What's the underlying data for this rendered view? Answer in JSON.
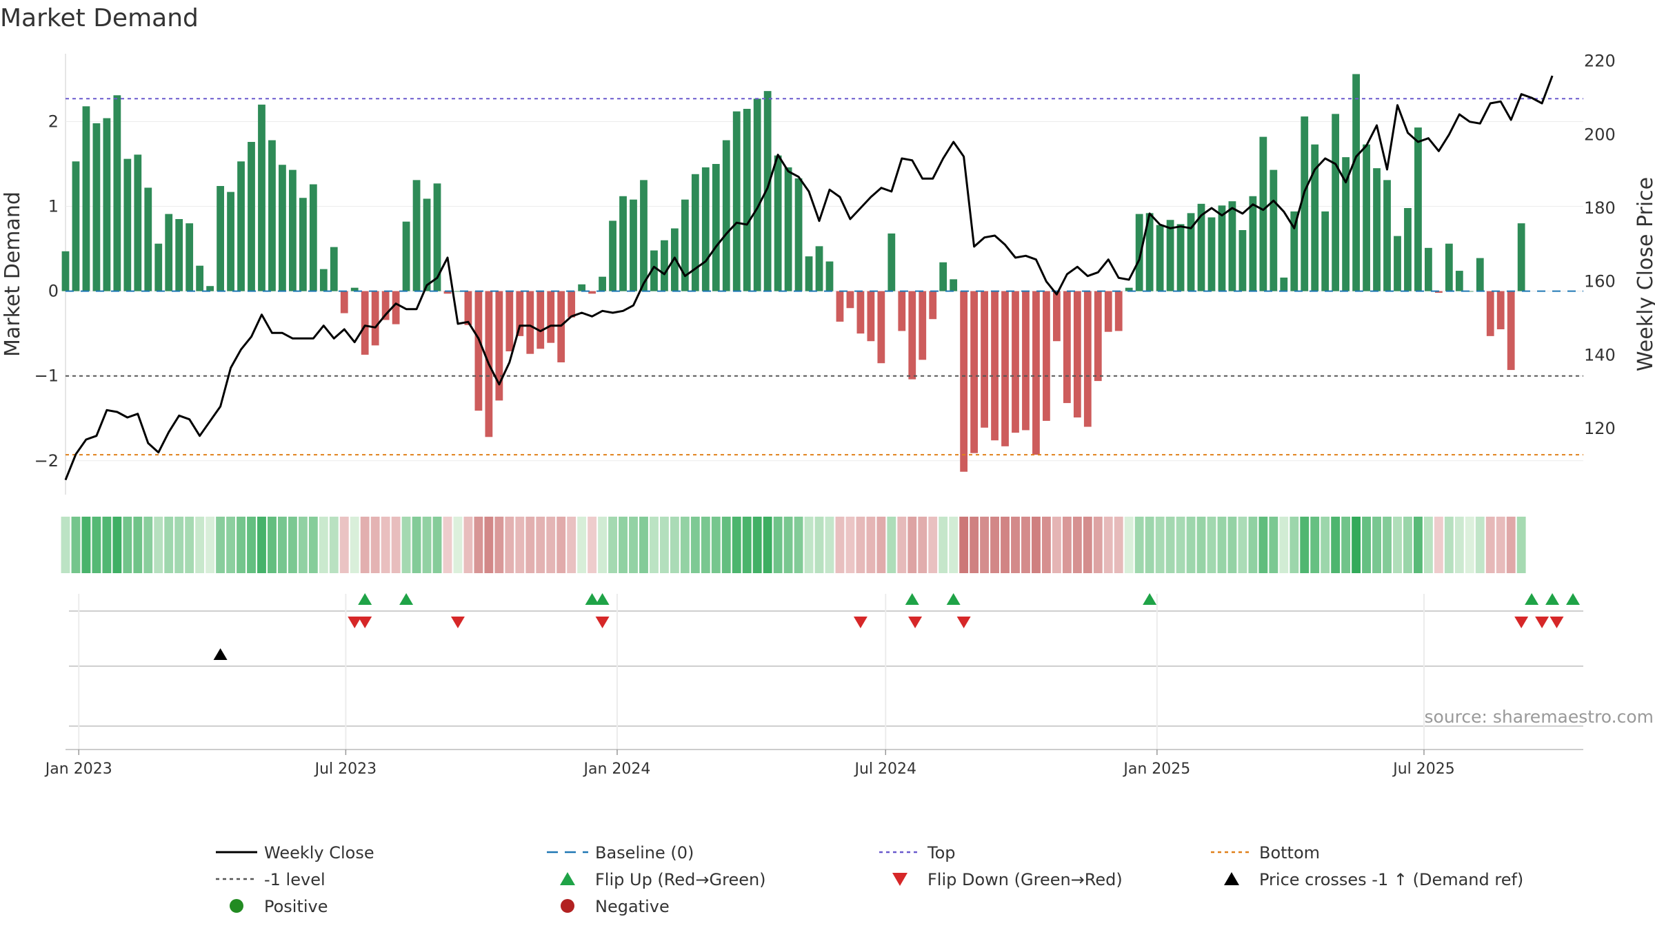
{
  "title": "Market Demand",
  "source": "source: sharemaestro.com",
  "colors": {
    "positive_bar": "#2e8b57",
    "negative_bar": "#cd5c5c",
    "close_line": "#000000",
    "baseline": "#1f77b4",
    "top": "#6a5acd",
    "bottom": "#e0801a",
    "minus_one": "#555555",
    "flip_up": "#1fa347",
    "flip_down": "#d62728",
    "cross_marker": "#000000",
    "positive_dot": "#228b22",
    "negative_dot": "#b22222"
  },
  "legend": [
    {
      "key": "close",
      "label": "Weekly Close",
      "marker": "line-solid",
      "color": "#000000"
    },
    {
      "key": "baseline",
      "label": "Baseline (0)",
      "marker": "line-dash",
      "color": "#1f77b4"
    },
    {
      "key": "top",
      "label": "Top",
      "marker": "line-dot",
      "color": "#6a5acd"
    },
    {
      "key": "bottom",
      "label": "Bottom",
      "marker": "line-dot",
      "color": "#e0801a"
    },
    {
      "key": "minus_one",
      "label": "-1 level",
      "marker": "line-dot",
      "color": "#555555"
    },
    {
      "key": "flip_up",
      "label": "Flip Up (Red→Green)",
      "marker": "triangle-up",
      "color": "#1fa347"
    },
    {
      "key": "flip_down",
      "label": "Flip Down (Green→Red)",
      "marker": "triangle-down",
      "color": "#d62728"
    },
    {
      "key": "cross",
      "label": "Price crosses -1 ↑ (Demand ref)",
      "marker": "triangle-up",
      "color": "#000000"
    },
    {
      "key": "positive",
      "label": "Positive",
      "marker": "circle",
      "color": "#228b22"
    },
    {
      "key": "negative",
      "label": "Negative",
      "marker": "circle",
      "color": "#b22222"
    }
  ],
  "chart_data": {
    "type": "bar",
    "title": "Market Demand",
    "ylabel": "Market Demand",
    "y2label": "Weekly Close Price",
    "ylim": [
      -2.4,
      2.8
    ],
    "y2lim": [
      102,
      222
    ],
    "yticks": [
      -2,
      -1,
      0,
      1,
      2
    ],
    "ytick_labels": [
      "−2",
      "−1",
      "0",
      "1",
      "2"
    ],
    "y2ticks": [
      120,
      140,
      160,
      180,
      200,
      220
    ],
    "x_start": "2022-12-23",
    "x_end": "2025-10-17",
    "date_ticks": [
      {
        "date": "2023-01-01",
        "label": "Jan 2023"
      },
      {
        "date": "2023-07-01",
        "label": "Jul 2023"
      },
      {
        "date": "2024-01-01",
        "label": "Jan 2024"
      },
      {
        "date": "2024-07-01",
        "label": "Jul 2024"
      },
      {
        "date": "2025-01-01",
        "label": "Jan 2025"
      },
      {
        "date": "2025-07-01",
        "label": "Jul 2025"
      }
    ],
    "reference_lines": {
      "top": 2.27,
      "bottom": -1.93,
      "minus_one": -1.0,
      "baseline": 0
    },
    "weeks_start": "2022-12-23",
    "demand": [
      0.47,
      1.53,
      2.18,
      1.98,
      2.04,
      2.31,
      1.56,
      1.61,
      1.22,
      0.56,
      0.91,
      0.85,
      0.8,
      0.3,
      0.06,
      1.24,
      1.17,
      1.53,
      1.76,
      2.2,
      1.78,
      1.49,
      1.43,
      1.1,
      1.26,
      0.26,
      0.52,
      -0.26,
      0.04,
      -0.75,
      -0.64,
      -0.34,
      -0.39,
      0.82,
      1.31,
      1.09,
      1.27,
      -0.03,
      0.0,
      -0.4,
      -1.41,
      -1.72,
      -1.29,
      -0.71,
      -0.53,
      -0.74,
      -0.68,
      -0.61,
      -0.84,
      -0.31,
      0.08,
      -0.03,
      0.17,
      0.83,
      1.12,
      1.08,
      1.31,
      0.48,
      0.6,
      0.74,
      1.08,
      1.38,
      1.46,
      1.5,
      1.78,
      2.12,
      2.15,
      2.27,
      2.36,
      1.6,
      1.46,
      1.33,
      0.41,
      0.53,
      0.35,
      -0.36,
      -0.2,
      -0.5,
      -0.59,
      -0.85,
      0.68,
      -0.47,
      -1.04,
      -0.81,
      -0.33,
      0.34,
      0.14,
      -2.13,
      -1.91,
      -1.61,
      -1.76,
      -1.83,
      -1.67,
      -1.64,
      -1.93,
      -1.53,
      -0.59,
      -1.32,
      -1.49,
      -1.6,
      -1.06,
      -0.48,
      -0.47,
      0.04,
      0.91,
      0.92,
      0.78,
      0.84,
      0.79,
      0.92,
      1.03,
      0.87,
      1.01,
      1.06,
      0.72,
      1.12,
      1.82,
      1.43,
      0.16,
      0.94,
      2.06,
      1.73,
      0.94,
      2.09,
      1.58,
      2.56,
      1.73,
      1.45,
      1.31,
      0.65,
      0.98,
      1.93,
      0.51,
      -0.02,
      0.56,
      0.24,
      0.0,
      0.39,
      -0.53,
      -0.45,
      -0.93,
      0.8
    ],
    "weekly_close": [
      106,
      113,
      117,
      118,
      125,
      124.5,
      123,
      124,
      116,
      113.5,
      119,
      123.5,
      122.5,
      118,
      122,
      126,
      136.5,
      141.5,
      145,
      151,
      146,
      146,
      144.5,
      144.5,
      144.5,
      148,
      144.5,
      147,
      143.5,
      148,
      147.5,
      151,
      154,
      152.5,
      152.5,
      159,
      161,
      166.5,
      148.5,
      149,
      144.5,
      137.5,
      132,
      138,
      148,
      148,
      146.5,
      148,
      148,
      150.5,
      151.5,
      150.5,
      152,
      151.5,
      152,
      153.5,
      159.5,
      164,
      162,
      166.5,
      161.5,
      163.5,
      165.5,
      169.5,
      173,
      176,
      175.5,
      180,
      185.5,
      194.5,
      190,
      188.5,
      184.5,
      176.5,
      185,
      183,
      177,
      180,
      183,
      185.5,
      184.5,
      193.5,
      193,
      188,
      188,
      193.5,
      198,
      194,
      169.5,
      172,
      172.5,
      170,
      166.5,
      167,
      166,
      160,
      156.5,
      162,
      164,
      161.5,
      162.5,
      166,
      161,
      160.5,
      166,
      178.5,
      175.5,
      174.5,
      175,
      174.5,
      178,
      180,
      178,
      180,
      178.5,
      181,
      179.5,
      182,
      179,
      174.5,
      184.5,
      190.5,
      193.5,
      192,
      187,
      194,
      197,
      202.5,
      190.5,
      208,
      200.5,
      198,
      199,
      195.5,
      200,
      205.5,
      203.5,
      203,
      208.5,
      209,
      204,
      211,
      210,
      208.5,
      216
    ],
    "heat_strip": "one color cell per week, shaded green (positive demand) or red (negative demand) by magnitude",
    "flip_up_dates": [
      "2023-07-14",
      "2023-08-11",
      "2023-12-15",
      "2023-12-22",
      "2024-07-19",
      "2024-08-16",
      "2024-12-27",
      "2025-09-12",
      "2025-09-26",
      "2025-10-10"
    ],
    "flip_down_dates": [
      "2023-07-07",
      "2023-07-14",
      "2023-09-15",
      "2023-12-22",
      "2024-06-14",
      "2024-07-21",
      "2024-08-23",
      "2025-09-05",
      "2025-09-19",
      "2025-09-29"
    ],
    "price_cross_dates": [
      "2023-04-07"
    ]
  }
}
